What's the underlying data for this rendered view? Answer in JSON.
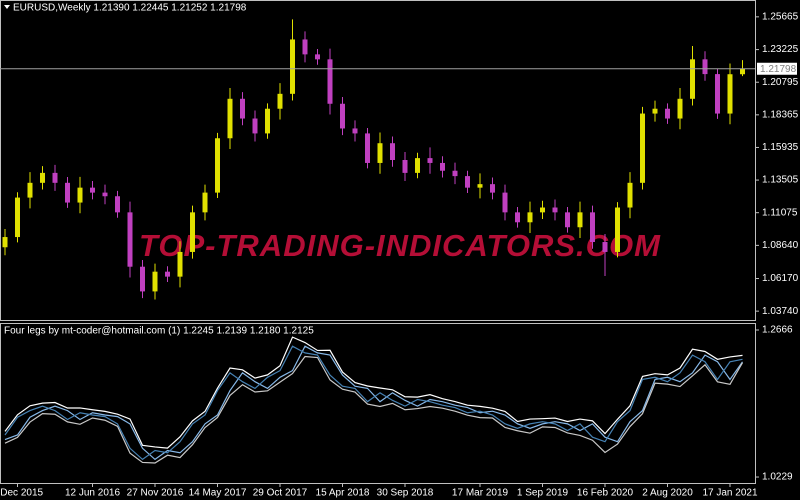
{
  "chart_data": [
    {
      "type": "candlestick",
      "title": "EURUSD,Weekly  1.21390 1.22445 1.21252 1.21798",
      "annotation": "TOP-TRADING-INDICATORS.COM",
      "up_color": "#e0e000",
      "down_color": "#c040c0",
      "open": [
        1.085,
        1.0926,
        1.122,
        1.133,
        1.1404,
        1.133,
        1.1183,
        1.1294,
        1.1257,
        1.123,
        1.111,
        1.0705,
        1.0521,
        1.0668,
        1.0631,
        1.0815,
        1.111,
        1.1257,
        1.1662,
        1.1956,
        1.1809,
        1.1698,
        1.1882,
        1.1993,
        1.2398,
        1.2287,
        1.225,
        1.1919,
        1.1735,
        1.1698,
        1.1478,
        1.1625,
        1.15,
        1.1404,
        1.1514,
        1.1478,
        1.142,
        1.138,
        1.1294,
        1.132,
        1.1257,
        1.111,
        1.1036,
        1.111,
        1.1146,
        1.111,
        1.0999,
        1.111,
        1.0889,
        1.0815,
        1.1146,
        1.133,
        1.1846,
        1.1882,
        1.1809,
        1.1956,
        1.225,
        1.214,
        1.1846,
        1.2139
      ],
      "high": [
        1.0986,
        1.126,
        1.141,
        1.1454,
        1.1464,
        1.1373,
        1.1374,
        1.1344,
        1.1317,
        1.127,
        1.119,
        1.0755,
        1.0728,
        1.0708,
        1.0895,
        1.116,
        1.1317,
        1.1702,
        1.2036,
        1.2006,
        1.1869,
        1.1922,
        1.2073,
        1.2548,
        1.2458,
        1.2327,
        1.233,
        1.1969,
        1.1795,
        1.1738,
        1.1705,
        1.1675,
        1.156,
        1.1554,
        1.1594,
        1.1528,
        1.148,
        1.142,
        1.14,
        1.137,
        1.1317,
        1.115,
        1.119,
        1.1196,
        1.1206,
        1.115,
        1.119,
        1.116,
        1.0949,
        1.1186,
        1.141,
        1.1896,
        1.1942,
        1.1922,
        1.2036,
        1.2349,
        1.231,
        1.218,
        1.2219,
        1.22445
      ],
      "low": [
        1.079,
        1.0886,
        1.114,
        1.128,
        1.127,
        1.1143,
        1.1103,
        1.1207,
        1.117,
        1.107,
        1.0625,
        1.0471,
        1.0461,
        1.0591,
        1.0551,
        1.0765,
        1.105,
        1.1217,
        1.1582,
        1.1759,
        1.1638,
        1.1658,
        1.1802,
        1.1943,
        1.2227,
        1.221,
        1.1839,
        1.1685,
        1.1638,
        1.1438,
        1.1398,
        1.145,
        1.1344,
        1.1364,
        1.1398,
        1.137,
        1.132,
        1.1254,
        1.1214,
        1.1207,
        1.105,
        1.0996,
        1.0956,
        1.106,
        1.105,
        1.0959,
        1.0919,
        1.0839,
        1.0636,
        1.0775,
        1.1066,
        1.128,
        1.1786,
        1.1769,
        1.1729,
        1.1906,
        1.209,
        1.1806,
        1.1766,
        1.21252
      ],
      "close": [
        1.0926,
        1.122,
        1.133,
        1.1404,
        1.133,
        1.1183,
        1.1294,
        1.1257,
        1.123,
        1.111,
        1.0705,
        1.0521,
        1.0668,
        1.0631,
        1.0815,
        1.111,
        1.1257,
        1.1662,
        1.1956,
        1.1809,
        1.1698,
        1.1882,
        1.1993,
        1.2398,
        1.2287,
        1.225,
        1.1919,
        1.1735,
        1.1698,
        1.1478,
        1.1625,
        1.15,
        1.1404,
        1.1514,
        1.1478,
        1.142,
        1.138,
        1.1294,
        1.132,
        1.1257,
        1.111,
        1.1036,
        1.111,
        1.1146,
        1.111,
        1.0999,
        1.111,
        1.0889,
        1.0815,
        1.1146,
        1.133,
        1.1846,
        1.1882,
        1.1809,
        1.1956,
        1.225,
        1.214,
        1.1846,
        1.2139,
        1.21798
      ],
      "current_price": 1.21798,
      "ylim": [
        1.0308,
        1.2692
      ],
      "yticks": [
        1.25665,
        1.23225,
        1.20795,
        1.18365,
        1.15935,
        1.13505,
        1.11075,
        {
          "value": 1.0864,
          "label": "1.08640"
        },
        {
          "value": 1.0617,
          "label": "1.06170"
        },
        {
          "value": 1.0374,
          "label": "1.03740"
        }
      ]
    },
    {
      "type": "line",
      "title": "Four legs by mt-coder@hotmail.com (1) 1.2245 1.2139 1.2180 1.2125",
      "categories": [
        null,
        "2 Dec 2015",
        null,
        null,
        null,
        null,
        null,
        "12 Jun 2016",
        null,
        null,
        null,
        null,
        "27 Nov 2016",
        null,
        null,
        null,
        null,
        "14 May 2017",
        null,
        null,
        null,
        null,
        "29 Oct 2017",
        null,
        null,
        null,
        null,
        "15 Apr 2018",
        null,
        null,
        null,
        null,
        "30 Sep 2018",
        null,
        null,
        null,
        null,
        null,
        "17 Mar 2019",
        null,
        null,
        null,
        null,
        "1 Sep 2019",
        null,
        null,
        null,
        null,
        "16 Feb 2020",
        null,
        null,
        null,
        null,
        "2 Aug 2020",
        null,
        null,
        null,
        null,
        "17 Jan 2021",
        null
      ],
      "series": [
        {
          "color": "#ffffff",
          "values": [
            1.0986,
            1.126,
            1.141,
            1.1454,
            1.1464,
            1.1373,
            1.1374,
            1.1344,
            1.1317,
            1.127,
            1.119,
            1.0755,
            1.0728,
            1.0708,
            1.0895,
            1.116,
            1.1317,
            1.1702,
            1.2036,
            1.2006,
            1.1869,
            1.1922,
            1.2073,
            1.2548,
            1.2458,
            1.2327,
            1.233,
            1.1969,
            1.1795,
            1.1738,
            1.1705,
            1.1675,
            1.156,
            1.1554,
            1.1594,
            1.1528,
            1.148,
            1.142,
            1.14,
            1.137,
            1.1317,
            1.115,
            1.119,
            1.1196,
            1.1206,
            1.115,
            1.119,
            1.116,
            1.0949,
            1.1186,
            1.141,
            1.1896,
            1.1942,
            1.1922,
            1.2036,
            1.2349,
            1.231,
            1.218,
            1.2219,
            1.2245
          ]
        },
        {
          "color": "#87b8e8",
          "values": [
            1.085,
            1.0926,
            1.122,
            1.133,
            1.1404,
            1.133,
            1.1183,
            1.1294,
            1.1257,
            1.123,
            1.111,
            1.0705,
            1.0521,
            1.0668,
            1.0631,
            1.0815,
            1.111,
            1.1257,
            1.1662,
            1.1956,
            1.1809,
            1.1698,
            1.1882,
            1.1993,
            1.2398,
            1.2287,
            1.225,
            1.1919,
            1.1735,
            1.1698,
            1.1478,
            1.1625,
            1.15,
            1.1404,
            1.1514,
            1.1478,
            1.142,
            1.138,
            1.1294,
            1.132,
            1.1257,
            1.111,
            1.1036,
            1.111,
            1.1146,
            1.111,
            1.0999,
            1.111,
            1.0889,
            1.0815,
            1.1146,
            1.133,
            1.1846,
            1.1882,
            1.1809,
            1.1956,
            1.225,
            1.214,
            1.1846,
            1.2139
          ]
        },
        {
          "color": "#4682b4",
          "values": [
            1.0926,
            1.122,
            1.133,
            1.1404,
            1.133,
            1.1183,
            1.1294,
            1.1257,
            1.123,
            1.111,
            1.0705,
            1.0521,
            1.0668,
            1.0631,
            1.0815,
            1.111,
            1.1257,
            1.1662,
            1.1956,
            1.1809,
            1.1698,
            1.1882,
            1.1993,
            1.2398,
            1.2287,
            1.225,
            1.1919,
            1.1735,
            1.1698,
            1.1478,
            1.1625,
            1.15,
            1.1404,
            1.1514,
            1.1478,
            1.142,
            1.138,
            1.1294,
            1.132,
            1.1257,
            1.111,
            1.1036,
            1.111,
            1.1146,
            1.111,
            1.0999,
            1.111,
            1.0889,
            1.0815,
            1.1146,
            1.133,
            1.1846,
            1.1882,
            1.1809,
            1.1956,
            1.225,
            1.214,
            1.1846,
            1.2139,
            1.218
          ]
        },
        {
          "color": "#c8c8c8",
          "values": [
            1.079,
            1.0886,
            1.114,
            1.128,
            1.127,
            1.1143,
            1.1103,
            1.1207,
            1.117,
            1.107,
            1.0625,
            1.0471,
            1.0461,
            1.0591,
            1.0551,
            1.0765,
            1.105,
            1.1217,
            1.1582,
            1.1759,
            1.1638,
            1.1658,
            1.1802,
            1.1943,
            1.2227,
            1.221,
            1.1839,
            1.1685,
            1.1638,
            1.1438,
            1.1398,
            1.145,
            1.1344,
            1.1364,
            1.1398,
            1.137,
            1.132,
            1.1254,
            1.1214,
            1.1207,
            1.105,
            1.0996,
            1.0956,
            1.106,
            1.105,
            1.0959,
            1.0919,
            1.0839,
            1.0636,
            1.0775,
            1.1066,
            1.128,
            1.1786,
            1.1769,
            1.1729,
            1.1906,
            1.209,
            1.1806,
            1.1766,
            1.2125
          ]
        }
      ],
      "ylim": [
        1.013,
        1.2782
      ],
      "yticks": [
        1.2666,
        1.0229
      ]
    }
  ]
}
